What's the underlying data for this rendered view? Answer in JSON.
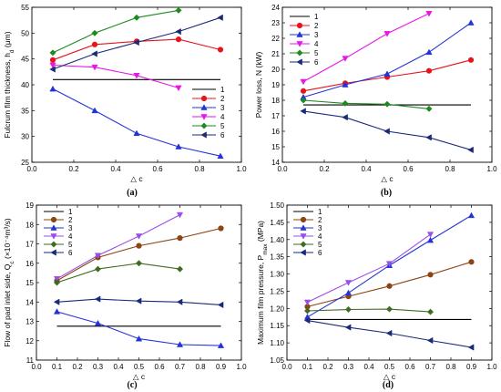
{
  "chart_data": [
    {
      "type": "line",
      "caption": "(a)",
      "xlabel": "△ c",
      "ylabel": "Fulcrum film thickness, h",
      "ylabel_sub": "d",
      "ylabel_tail": " (μm)",
      "xlim": [
        0.0,
        1.0
      ],
      "ylim": [
        25,
        55
      ],
      "xticks": [
        "0.0",
        "0.2",
        "0.4",
        "0.6",
        "0.8",
        "1.0"
      ],
      "yticks": [
        "25",
        "30",
        "35",
        "40",
        "45",
        "50",
        "55"
      ],
      "series": [
        {
          "name": "1",
          "color": "#000000",
          "marker": "none",
          "x": [
            0.1,
            0.9
          ],
          "y": [
            41.0,
            41.0
          ]
        },
        {
          "name": "2",
          "color": "#e8141c",
          "marker": "circle",
          "x": [
            0.1,
            0.3,
            0.5,
            0.7,
            0.9
          ],
          "y": [
            44.8,
            47.8,
            48.4,
            48.8,
            46.8
          ]
        },
        {
          "name": "3",
          "color": "#2433d8",
          "marker": "tri-up",
          "x": [
            0.1,
            0.3,
            0.5,
            0.7,
            0.9
          ],
          "y": [
            39.2,
            35.0,
            30.6,
            28.0,
            26.2
          ]
        },
        {
          "name": "4",
          "color": "#e817e8",
          "marker": "tri-down",
          "x": [
            0.1,
            0.3,
            0.5,
            0.7
          ],
          "y": [
            43.8,
            43.4,
            41.8,
            39.4
          ]
        },
        {
          "name": "5",
          "color": "#1e8a1e",
          "marker": "diamond",
          "x": [
            0.1,
            0.3,
            0.5,
            0.7
          ],
          "y": [
            46.2,
            50.0,
            53.0,
            54.4
          ]
        },
        {
          "name": "6",
          "color": "#1a2a7a",
          "marker": "tri-left",
          "x": [
            0.1,
            0.3,
            0.5,
            0.7,
            0.9
          ],
          "y": [
            43.0,
            46.0,
            48.2,
            50.3,
            53.0
          ]
        }
      ]
    },
    {
      "type": "line",
      "caption": "(b)",
      "xlabel": "△ c",
      "ylabel": "Power loss, N (kW)",
      "ylabel_sub": "",
      "ylabel_tail": "",
      "xlim": [
        0.0,
        1.0
      ],
      "ylim": [
        14,
        24
      ],
      "xticks": [
        "0.0",
        "0.2",
        "0.4",
        "0.6",
        "0.8",
        "1.0"
      ],
      "yticks": [
        "14",
        "15",
        "16",
        "17",
        "18",
        "19",
        "20",
        "21",
        "22",
        "23",
        "24"
      ],
      "series": [
        {
          "name": "1",
          "color": "#000000",
          "marker": "none",
          "x": [
            0.1,
            0.9
          ],
          "y": [
            17.7,
            17.7
          ]
        },
        {
          "name": "2",
          "color": "#e8141c",
          "marker": "circle",
          "x": [
            0.1,
            0.3,
            0.5,
            0.7,
            0.9
          ],
          "y": [
            18.6,
            19.1,
            19.5,
            19.9,
            20.6
          ]
        },
        {
          "name": "3",
          "color": "#2433d8",
          "marker": "tri-up",
          "x": [
            0.1,
            0.3,
            0.5,
            0.7,
            0.9
          ],
          "y": [
            18.2,
            19.0,
            19.7,
            21.1,
            23.0
          ]
        },
        {
          "name": "4",
          "color": "#e817e8",
          "marker": "tri-down",
          "x": [
            0.1,
            0.3,
            0.5,
            0.7
          ],
          "y": [
            19.2,
            20.7,
            22.3,
            23.6
          ]
        },
        {
          "name": "5",
          "color": "#1e8a1e",
          "marker": "diamond",
          "x": [
            0.1,
            0.3,
            0.5,
            0.7
          ],
          "y": [
            18.0,
            17.8,
            17.75,
            17.45
          ]
        },
        {
          "name": "6",
          "color": "#1a2a7a",
          "marker": "tri-left",
          "x": [
            0.1,
            0.3,
            0.5,
            0.7,
            0.9
          ],
          "y": [
            17.3,
            16.9,
            16.0,
            15.6,
            14.8
          ]
        }
      ]
    },
    {
      "type": "line",
      "caption": "(c)",
      "xlabel": "△ c",
      "ylabel": "Flow of pad inlet side, Q",
      "ylabel_sub": "c",
      "ylabel_tail": " (×10⁻⁴m³/s)",
      "xlim": [
        0.0,
        1.0
      ],
      "ylim": [
        11,
        19
      ],
      "xticks": [
        "0.0",
        "0.1",
        "0.2",
        "0.3",
        "0.4",
        "0.5",
        "0.6",
        "0.7",
        "0.8",
        "0.9",
        "1.0"
      ],
      "yticks": [
        "11",
        "12",
        "13",
        "14",
        "15",
        "16",
        "17",
        "18",
        "19"
      ],
      "series": [
        {
          "name": "1",
          "color": "#000000",
          "marker": "none",
          "x": [
            0.1,
            0.9
          ],
          "y": [
            12.75,
            12.75
          ]
        },
        {
          "name": "2",
          "color": "#8b4513",
          "marker": "circle",
          "x": [
            0.1,
            0.3,
            0.5,
            0.7,
            0.9
          ],
          "y": [
            15.1,
            16.3,
            16.9,
            17.3,
            17.8
          ]
        },
        {
          "name": "3",
          "color": "#2433d8",
          "marker": "tri-up",
          "x": [
            0.1,
            0.3,
            0.5,
            0.7,
            0.9
          ],
          "y": [
            13.5,
            12.9,
            12.1,
            11.8,
            11.75
          ]
        },
        {
          "name": "4",
          "color": "#9b4de8",
          "marker": "tri-down",
          "x": [
            0.1,
            0.3,
            0.5,
            0.7
          ],
          "y": [
            15.2,
            16.4,
            17.4,
            18.5
          ]
        },
        {
          "name": "5",
          "color": "#3f6b22",
          "marker": "diamond",
          "x": [
            0.1,
            0.3,
            0.5,
            0.7
          ],
          "y": [
            15.0,
            15.7,
            16.0,
            15.7
          ]
        },
        {
          "name": "6",
          "color": "#1a2a7a",
          "marker": "tri-left",
          "x": [
            0.1,
            0.3,
            0.5,
            0.7,
            0.9
          ],
          "y": [
            14.0,
            14.15,
            14.05,
            14.0,
            13.85
          ]
        }
      ]
    },
    {
      "type": "line",
      "caption": "(d)",
      "xlabel": "△ c",
      "ylabel": "Maximum film pressure, P",
      "ylabel_sub": "max",
      "ylabel_tail": " (MPa)",
      "xlim": [
        0.0,
        1.0
      ],
      "ylim": [
        1.05,
        1.5
      ],
      "xticks": [
        "0.0",
        "0.1",
        "0.2",
        "0.3",
        "0.4",
        "0.5",
        "0.6",
        "0.7",
        "0.8",
        "0.9",
        "1.0"
      ],
      "yticks": [
        "1.05",
        "1.10",
        "1.15",
        "1.20",
        "1.25",
        "1.30",
        "1.35",
        "1.40",
        "1.45",
        "1.50"
      ],
      "series": [
        {
          "name": "1",
          "color": "#000000",
          "marker": "none",
          "x": [
            0.1,
            0.9
          ],
          "y": [
            1.168,
            1.168
          ]
        },
        {
          "name": "2",
          "color": "#8b4513",
          "marker": "circle",
          "x": [
            0.1,
            0.3,
            0.5,
            0.7,
            0.9
          ],
          "y": [
            1.205,
            1.235,
            1.265,
            1.298,
            1.335
          ]
        },
        {
          "name": "3",
          "color": "#2433d8",
          "marker": "tri-up",
          "x": [
            0.1,
            0.3,
            0.5,
            0.7,
            0.9
          ],
          "y": [
            1.175,
            1.245,
            1.325,
            1.398,
            1.47
          ]
        },
        {
          "name": "4",
          "color": "#9b4de8",
          "marker": "tri-down",
          "x": [
            0.1,
            0.3,
            0.5,
            0.7
          ],
          "y": [
            1.218,
            1.275,
            1.33,
            1.415
          ]
        },
        {
          "name": "5",
          "color": "#3f6b22",
          "marker": "diamond",
          "x": [
            0.1,
            0.3,
            0.5,
            0.7
          ],
          "y": [
            1.193,
            1.197,
            1.198,
            1.19
          ]
        },
        {
          "name": "6",
          "color": "#1a2a7a",
          "marker": "tri-left",
          "x": [
            0.1,
            0.3,
            0.5,
            0.7,
            0.9
          ],
          "y": [
            1.165,
            1.145,
            1.128,
            1.107,
            1.087
          ]
        }
      ]
    }
  ]
}
